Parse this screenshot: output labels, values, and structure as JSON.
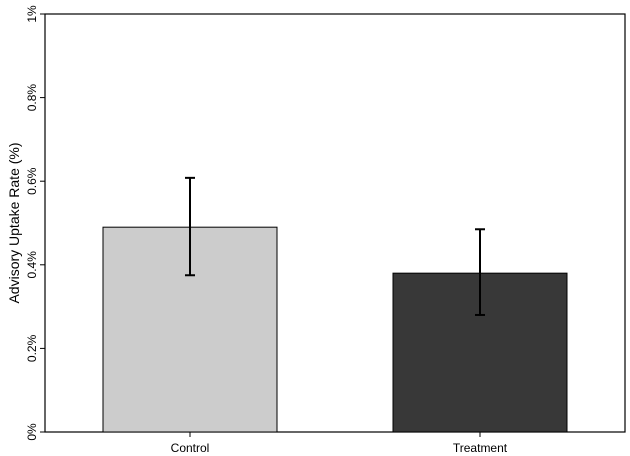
{
  "chart_data": {
    "type": "bar",
    "title": "",
    "xlabel": "",
    "ylabel": "Advisory Uptake Rate (%)",
    "ylim": [
      0,
      1
    ],
    "yticks": [
      {
        "value": 0,
        "label": "0%"
      },
      {
        "value": 0.2,
        "label": "0.2%"
      },
      {
        "value": 0.4,
        "label": "0.4%"
      },
      {
        "value": 0.6,
        "label": "0.6%"
      },
      {
        "value": 0.8,
        "label": "0.8%"
      },
      {
        "value": 1,
        "label": "1%"
      }
    ],
    "categories": [
      "Control",
      "Treatment"
    ],
    "values": [
      0.49,
      0.38
    ],
    "error_bars": [
      {
        "low": 0.375,
        "high": 0.608
      },
      {
        "low": 0.28,
        "high": 0.485
      }
    ],
    "colors": [
      "#cccccc",
      "#383838"
    ],
    "grid": false,
    "legend": "none"
  }
}
